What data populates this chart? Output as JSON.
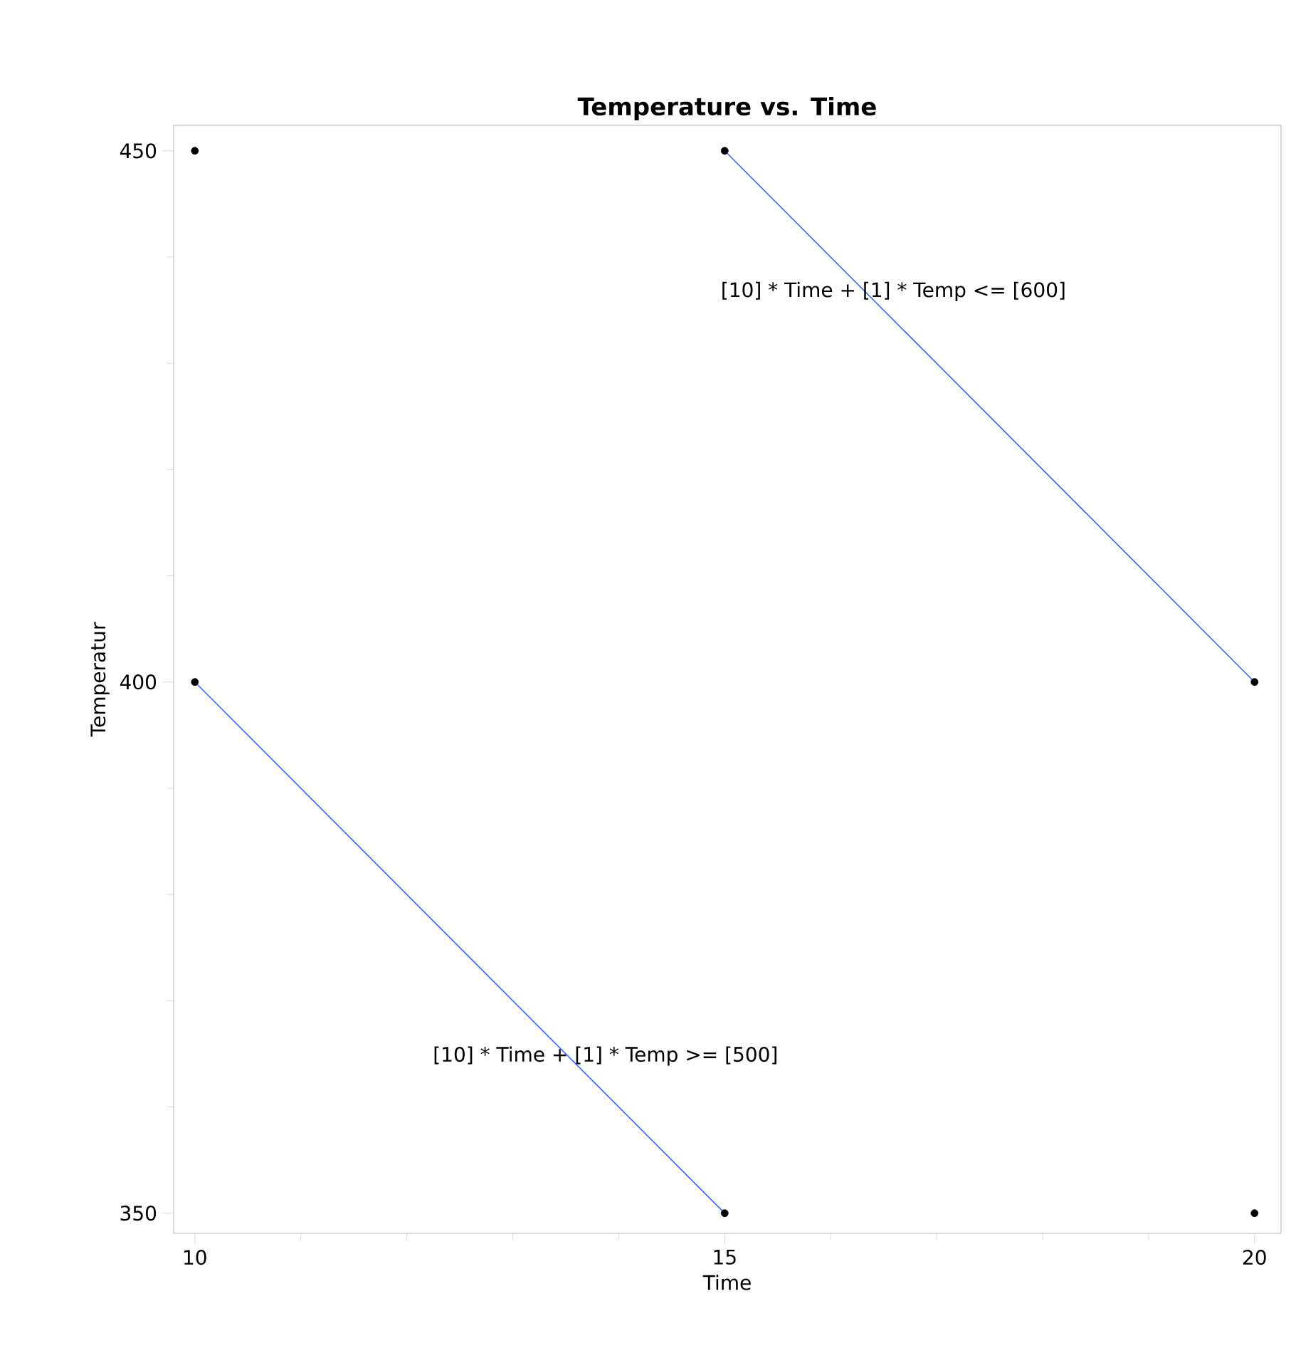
{
  "chart_data": {
    "type": "scatter",
    "title": "Temperature vs. Time",
    "xlabel": "Time",
    "ylabel": "Temperatur",
    "xlim": [
      9.8,
      20.25
    ],
    "ylim": [
      348.1,
      452.4
    ],
    "xticks": [
      10,
      {
        "value": 11,
        "label": null
      },
      {
        "value": 12,
        "label": null
      },
      {
        "value": 13,
        "label": null
      },
      {
        "value": 14,
        "label": null
      },
      15,
      {
        "value": 16,
        "label": null
      },
      {
        "value": 17,
        "label": null
      },
      {
        "value": 18,
        "label": null
      },
      {
        "value": 19,
        "label": null
      },
      20
    ],
    "yticks": [
      350,
      {
        "value": 360,
        "label": null
      },
      {
        "value": 370,
        "label": null
      },
      {
        "value": 380,
        "label": null
      },
      {
        "value": 390,
        "label": null
      },
      400,
      {
        "value": 410,
        "label": null
      },
      {
        "value": 420,
        "label": null
      },
      {
        "value": 430,
        "label": null
      },
      {
        "value": 440,
        "label": null
      },
      450
    ],
    "grid": false,
    "series": [
      {
        "marker": "circle",
        "color": "#000000",
        "x": [
          10,
          15,
          10,
          20,
          15,
          20
        ],
        "values": [
          450,
          450,
          400,
          400,
          350,
          350
        ]
      },
      {
        "type": "line",
        "color": "#3366ff",
        "x": [
          15,
          20
        ],
        "values": [
          450,
          400
        ]
      },
      {
        "type": "line",
        "color": "#3366ff",
        "x": [
          10,
          15
        ],
        "values": [
          400,
          350
        ]
      }
    ],
    "annotations": [
      "[10] * Time + [1] * Temp <= [600]",
      "[10] * Time + [1] * Temp >= [500]"
    ]
  }
}
